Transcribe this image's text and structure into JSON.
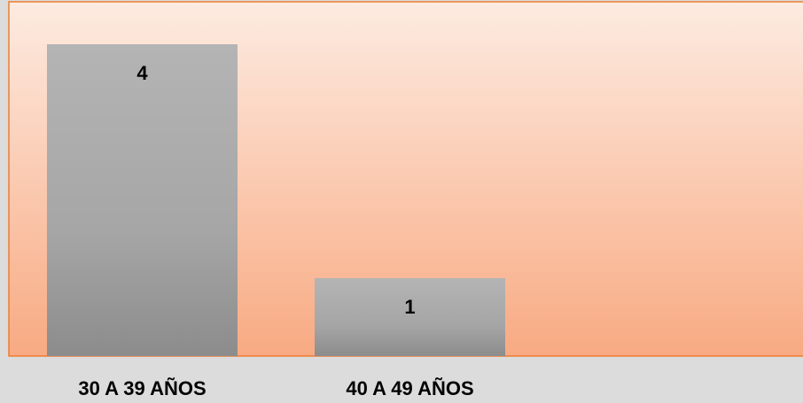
{
  "chart_data": {
    "type": "bar",
    "categories": [
      "30 A 39 AÑOS",
      "40 A 49 AÑOS"
    ],
    "values": [
      4,
      1
    ],
    "title": "",
    "xlabel": "",
    "ylabel": "",
    "ylim": [
      0,
      4.5
    ],
    "grid": false,
    "legend": "none",
    "colors": {
      "bar": "#a6a6a6",
      "bar_light": "#b4b4b4",
      "bar_dark": "#8c8c8c",
      "plot_top": "#fdebe1",
      "plot_bottom": "#f8aa82",
      "plot_border": "#ed7d31",
      "background": "#dcdcdc"
    }
  }
}
